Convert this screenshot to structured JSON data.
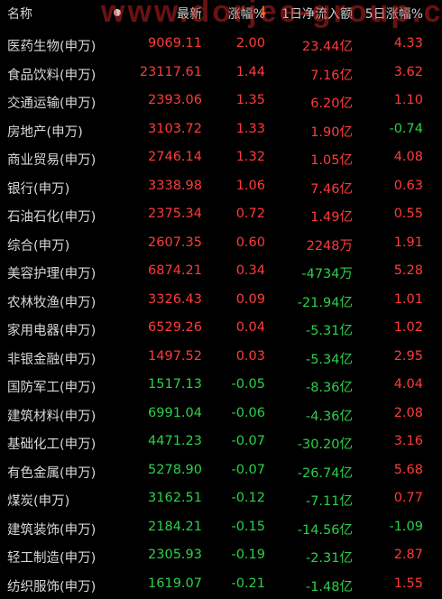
{
  "watermark": "www.dorjee-group.com",
  "header": {
    "name": "名称",
    "latest": "最新",
    "change_pct": "涨幅%",
    "sort_arrow": "↓",
    "net_inflow_1d": "1日净流入额",
    "change_5d": "5日涨幅%"
  },
  "colors": {
    "up": "#ff3b3b",
    "down": "#2bd14a",
    "text": "#d8d8d8",
    "background": "#000000",
    "sort_arrow": "#f0c020"
  },
  "rows": [
    {
      "name": "医药生物(申万)",
      "price": "9069.11",
      "change": "2.00",
      "flow": "23.44亿",
      "chg5": "4.33"
    },
    {
      "name": "食品饮料(申万)",
      "price": "23117.61",
      "change": "1.44",
      "flow": "7.16亿",
      "chg5": "3.62"
    },
    {
      "name": "交通运输(申万)",
      "price": "2393.06",
      "change": "1.35",
      "flow": "6.20亿",
      "chg5": "1.10"
    },
    {
      "name": "房地产(申万)",
      "price": "3103.72",
      "change": "1.33",
      "flow": "1.90亿",
      "chg5": "-0.74"
    },
    {
      "name": "商业贸易(申万)",
      "price": "2746.14",
      "change": "1.32",
      "flow": "1.05亿",
      "chg5": "4.08"
    },
    {
      "name": "银行(申万)",
      "price": "3338.98",
      "change": "1.06",
      "flow": "7.46亿",
      "chg5": "0.63"
    },
    {
      "name": "石油石化(申万)",
      "price": "2375.34",
      "change": "0.72",
      "flow": "1.49亿",
      "chg5": "0.55"
    },
    {
      "name": "综合(申万)",
      "price": "2607.35",
      "change": "0.60",
      "flow": "2248万",
      "chg5": "1.91"
    },
    {
      "name": "美容护理(申万)",
      "price": "6874.21",
      "change": "0.34",
      "flow": "-4734万",
      "chg5": "5.28"
    },
    {
      "name": "农林牧渔(申万)",
      "price": "3326.43",
      "change": "0.09",
      "flow": "-21.94亿",
      "chg5": "1.01"
    },
    {
      "name": "家用电器(申万)",
      "price": "6529.26",
      "change": "0.04",
      "flow": "-5.31亿",
      "chg5": "1.02"
    },
    {
      "name": "非银金融(申万)",
      "price": "1497.52",
      "change": "0.03",
      "flow": "-5.34亿",
      "chg5": "2.95"
    },
    {
      "name": "国防军工(申万)",
      "price": "1517.13",
      "change": "-0.05",
      "flow": "-8.36亿",
      "chg5": "4.04"
    },
    {
      "name": "建筑材料(申万)",
      "price": "6991.04",
      "change": "-0.06",
      "flow": "-4.36亿",
      "chg5": "2.08"
    },
    {
      "name": "基础化工(申万)",
      "price": "4471.23",
      "change": "-0.07",
      "flow": "-30.20亿",
      "chg5": "3.16"
    },
    {
      "name": "有色金属(申万)",
      "price": "5278.90",
      "change": "-0.07",
      "flow": "-26.74亿",
      "chg5": "5.68"
    },
    {
      "name": "煤炭(申万)",
      "price": "3162.51",
      "change": "-0.12",
      "flow": "-7.11亿",
      "chg5": "0.77"
    },
    {
      "name": "建筑装饰(申万)",
      "price": "2184.21",
      "change": "-0.15",
      "flow": "-14.56亿",
      "chg5": "-1.09"
    },
    {
      "name": "轻工制造(申万)",
      "price": "2305.93",
      "change": "-0.19",
      "flow": "-2.31亿",
      "chg5": "2.87"
    },
    {
      "name": "纺织服饰(申万)",
      "price": "1619.07",
      "change": "-0.21",
      "flow": "-1.48亿",
      "chg5": "1.55"
    }
  ]
}
